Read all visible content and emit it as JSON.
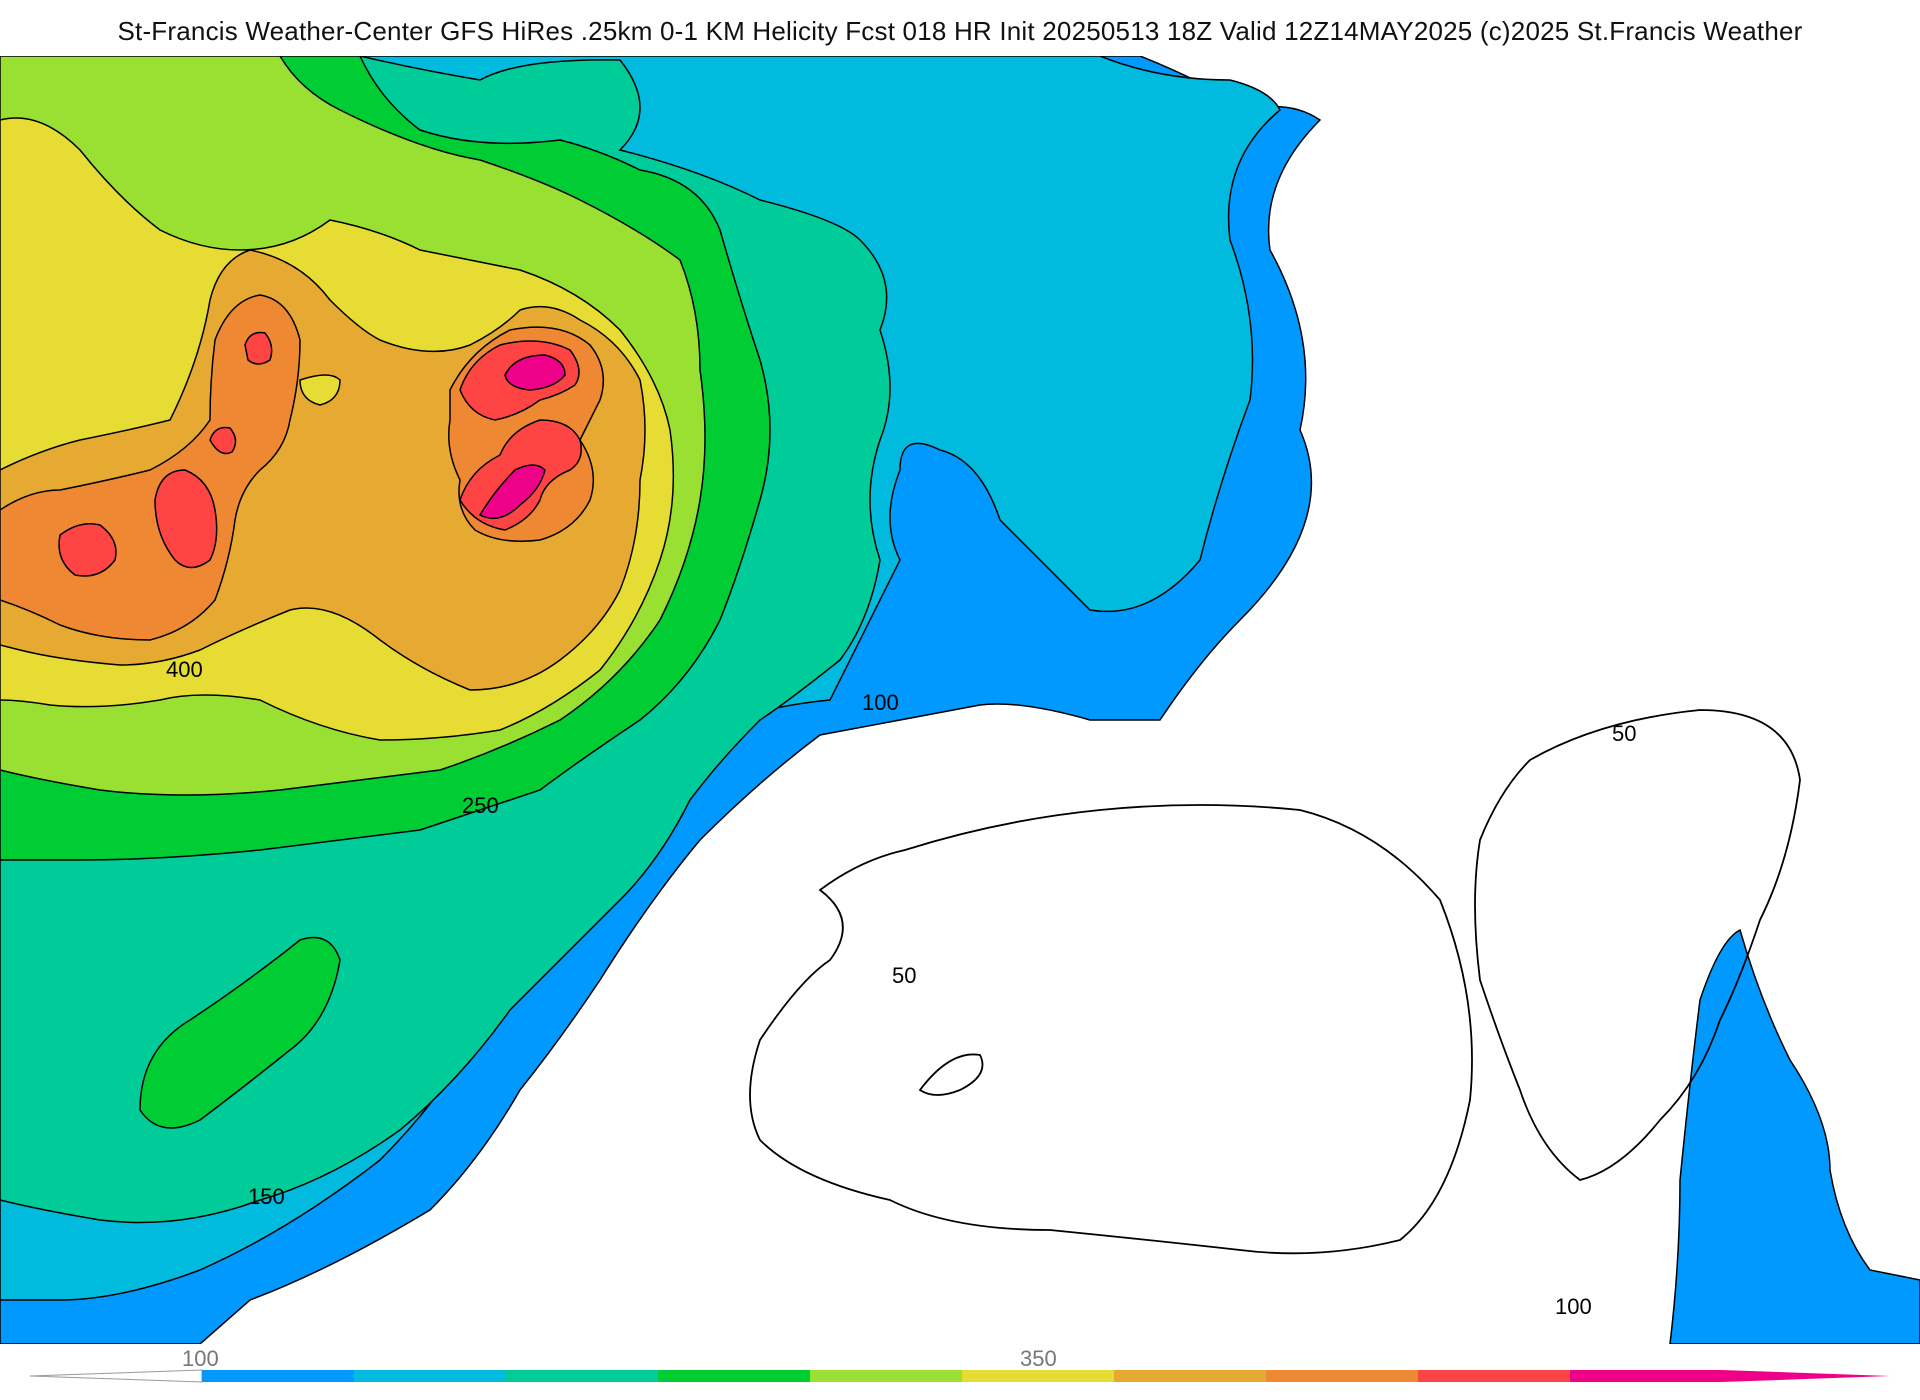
{
  "title": "St-Francis Weather-Center GFS HiRes .25km 0-1 KM Helicity Fcst 018 HR Init 20250513 18Z  Valid 12Z14MAY2025    (c)2025 St.Francis Weather",
  "contour_labels": [
    "400",
    "250",
    "150",
    "100",
    "100",
    "50",
    "50",
    "100"
  ],
  "colorbar": {
    "tick_labels": [
      "100",
      "350"
    ],
    "colors": [
      "#0099ff",
      "#00bbdd",
      "#00cc99",
      "#00cc33",
      "#99e033",
      "#e6dc33",
      "#e6aa33",
      "#ee8833",
      "#ff4444",
      "#ee0088"
    ]
  },
  "colors": {
    "c50": "#ffffff",
    "c100": "#0099ff",
    "c150": "#00bbdd",
    "c200": "#00cc99",
    "c250": "#00cc33",
    "c300": "#99e033",
    "c350": "#e6dc33",
    "c400": "#e6aa33",
    "c450": "#ee8833",
    "c500": "#ff4444",
    "c550": "#ee0088"
  }
}
